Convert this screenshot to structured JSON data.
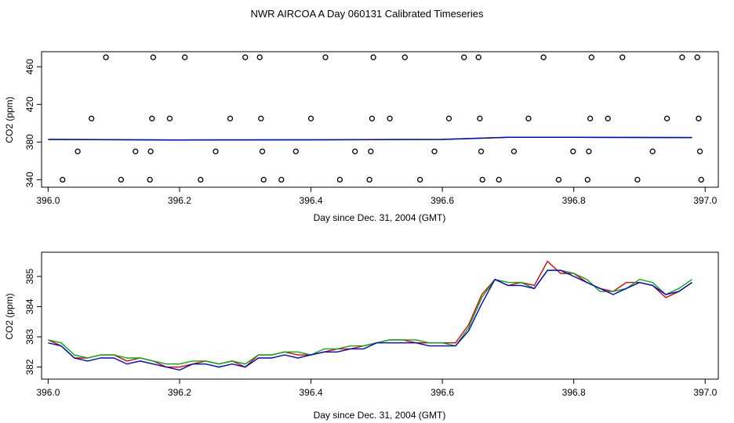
{
  "title": "NWR AIRCOA A  Day 060131  Calibrated Timeseries",
  "colors": {
    "red": "#e00000",
    "green": "#00b000",
    "blue": "#0000e0",
    "axis": "#000000"
  },
  "chart_data": [
    {
      "type": "scatter",
      "xlabel": "Day since Dec. 31, 2004 (GMT)",
      "ylabel": "CO2 (ppm)",
      "xlim": [
        395.99,
        397.02
      ],
      "ylim": [
        332,
        476
      ],
      "xticks": [
        "396.0",
        "396.2",
        "396.4",
        "396.6",
        "396.8",
        "397.0"
      ],
      "yticks": [
        "340",
        "380",
        "420",
        "460"
      ],
      "grid": false,
      "legend": "none",
      "calibration_points": [
        {
          "x": 396.022,
          "y": 340
        },
        {
          "x": 396.045,
          "y": 370
        },
        {
          "x": 396.066,
          "y": 405
        },
        {
          "x": 396.088,
          "y": 470
        },
        {
          "x": 396.111,
          "y": 340
        },
        {
          "x": 396.133,
          "y": 370
        },
        {
          "x": 396.155,
          "y": 340
        },
        {
          "x": 396.156,
          "y": 370
        },
        {
          "x": 396.158,
          "y": 405
        },
        {
          "x": 396.16,
          "y": 470
        },
        {
          "x": 396.185,
          "y": 405
        },
        {
          "x": 396.208,
          "y": 470
        },
        {
          "x": 396.232,
          "y": 340
        },
        {
          "x": 396.255,
          "y": 370
        },
        {
          "x": 396.277,
          "y": 405
        },
        {
          "x": 396.3,
          "y": 470
        },
        {
          "x": 396.322,
          "y": 470
        },
        {
          "x": 396.324,
          "y": 405
        },
        {
          "x": 396.326,
          "y": 370
        },
        {
          "x": 396.328,
          "y": 340
        },
        {
          "x": 396.355,
          "y": 340
        },
        {
          "x": 396.377,
          "y": 370
        },
        {
          "x": 396.4,
          "y": 405
        },
        {
          "x": 396.422,
          "y": 470
        },
        {
          "x": 396.444,
          "y": 340
        },
        {
          "x": 396.467,
          "y": 370
        },
        {
          "x": 396.489,
          "y": 340
        },
        {
          "x": 396.491,
          "y": 370
        },
        {
          "x": 396.493,
          "y": 405
        },
        {
          "x": 396.495,
          "y": 470
        },
        {
          "x": 396.52,
          "y": 405
        },
        {
          "x": 396.543,
          "y": 470
        },
        {
          "x": 396.566,
          "y": 340
        },
        {
          "x": 396.588,
          "y": 370
        },
        {
          "x": 396.61,
          "y": 405
        },
        {
          "x": 396.633,
          "y": 470
        },
        {
          "x": 396.655,
          "y": 470
        },
        {
          "x": 396.657,
          "y": 405
        },
        {
          "x": 396.659,
          "y": 370
        },
        {
          "x": 396.661,
          "y": 340
        },
        {
          "x": 396.686,
          "y": 340
        },
        {
          "x": 396.709,
          "y": 370
        },
        {
          "x": 396.731,
          "y": 405
        },
        {
          "x": 396.754,
          "y": 470
        },
        {
          "x": 396.777,
          "y": 340
        },
        {
          "x": 396.799,
          "y": 370
        },
        {
          "x": 396.821,
          "y": 340
        },
        {
          "x": 396.823,
          "y": 370
        },
        {
          "x": 396.825,
          "y": 405
        },
        {
          "x": 396.827,
          "y": 470
        },
        {
          "x": 396.852,
          "y": 405
        },
        {
          "x": 396.874,
          "y": 470
        },
        {
          "x": 396.897,
          "y": 340
        },
        {
          "x": 396.92,
          "y": 370
        },
        {
          "x": 396.942,
          "y": 405
        },
        {
          "x": 396.965,
          "y": 470
        },
        {
          "x": 396.988,
          "y": 470
        },
        {
          "x": 396.99,
          "y": 405
        },
        {
          "x": 396.992,
          "y": 370
        },
        {
          "x": 396.994,
          "y": 340
        }
      ],
      "series_level": {
        "x": [
          396.0,
          396.2,
          396.4,
          396.6,
          396.7,
          396.8,
          396.98
        ],
        "y": [
          382.8,
          382.2,
          382.4,
          382.8,
          385.0,
          385.0,
          384.8
        ]
      }
    },
    {
      "type": "line",
      "xlabel": "Day since Dec. 31, 2004 (GMT)",
      "ylabel": "CO2 (ppm)",
      "xlim": [
        395.99,
        397.02
      ],
      "ylim": [
        381.6,
        385.8
      ],
      "xticks": [
        "396.0",
        "396.2",
        "396.4",
        "396.6",
        "396.8",
        "397.0"
      ],
      "yticks": [
        "382",
        "383",
        "384",
        "385"
      ],
      "grid": false,
      "legend": "none",
      "x": [
        396.0,
        396.02,
        396.04,
        396.06,
        396.08,
        396.1,
        396.12,
        396.14,
        396.16,
        396.18,
        396.2,
        396.22,
        396.24,
        396.26,
        396.28,
        396.3,
        396.32,
        396.34,
        396.36,
        396.38,
        396.4,
        396.42,
        396.44,
        396.46,
        396.48,
        396.5,
        396.52,
        396.54,
        396.56,
        396.58,
        396.6,
        396.62,
        396.64,
        396.66,
        396.68,
        396.7,
        396.72,
        396.74,
        396.76,
        396.78,
        396.8,
        396.82,
        396.84,
        396.86,
        396.88,
        396.9,
        396.92,
        396.94,
        396.96,
        396.98
      ],
      "series": [
        {
          "color": "red",
          "values": [
            382.9,
            382.7,
            382.3,
            382.3,
            382.4,
            382.4,
            382.2,
            382.3,
            382.2,
            382.0,
            382.0,
            382.1,
            382.2,
            382.1,
            382.2,
            382.0,
            382.4,
            382.4,
            382.5,
            382.4,
            382.4,
            382.5,
            382.6,
            382.6,
            382.7,
            382.8,
            382.9,
            382.9,
            382.8,
            382.8,
            382.8,
            382.8,
            383.4,
            384.4,
            384.9,
            384.7,
            384.8,
            384.7,
            385.5,
            385.1,
            385.1,
            384.8,
            384.6,
            384.5,
            384.8,
            384.8,
            384.7,
            384.3,
            384.5,
            384.8
          ]
        },
        {
          "color": "green",
          "values": [
            382.9,
            382.8,
            382.4,
            382.3,
            382.4,
            382.4,
            382.3,
            382.3,
            382.2,
            382.1,
            382.1,
            382.2,
            382.2,
            382.1,
            382.2,
            382.1,
            382.4,
            382.4,
            382.5,
            382.5,
            382.4,
            382.6,
            382.6,
            382.7,
            382.7,
            382.8,
            382.9,
            382.9,
            382.9,
            382.8,
            382.8,
            382.7,
            383.3,
            384.3,
            384.9,
            384.8,
            384.8,
            384.6,
            385.2,
            385.2,
            385.1,
            384.9,
            384.5,
            384.5,
            384.6,
            384.9,
            384.8,
            384.4,
            384.6,
            384.9
          ]
        },
        {
          "color": "blue",
          "values": [
            382.8,
            382.7,
            382.3,
            382.2,
            382.3,
            382.3,
            382.1,
            382.2,
            382.1,
            382.0,
            381.9,
            382.1,
            382.1,
            382.0,
            382.1,
            382.0,
            382.3,
            382.3,
            382.4,
            382.3,
            382.4,
            382.5,
            382.5,
            382.6,
            382.6,
            382.8,
            382.8,
            382.8,
            382.8,
            382.7,
            382.7,
            382.7,
            383.2,
            384.1,
            384.9,
            384.7,
            384.7,
            384.6,
            385.2,
            385.2,
            385.0,
            384.8,
            384.6,
            384.4,
            384.6,
            384.8,
            384.7,
            384.4,
            384.5,
            384.8
          ]
        }
      ]
    }
  ]
}
